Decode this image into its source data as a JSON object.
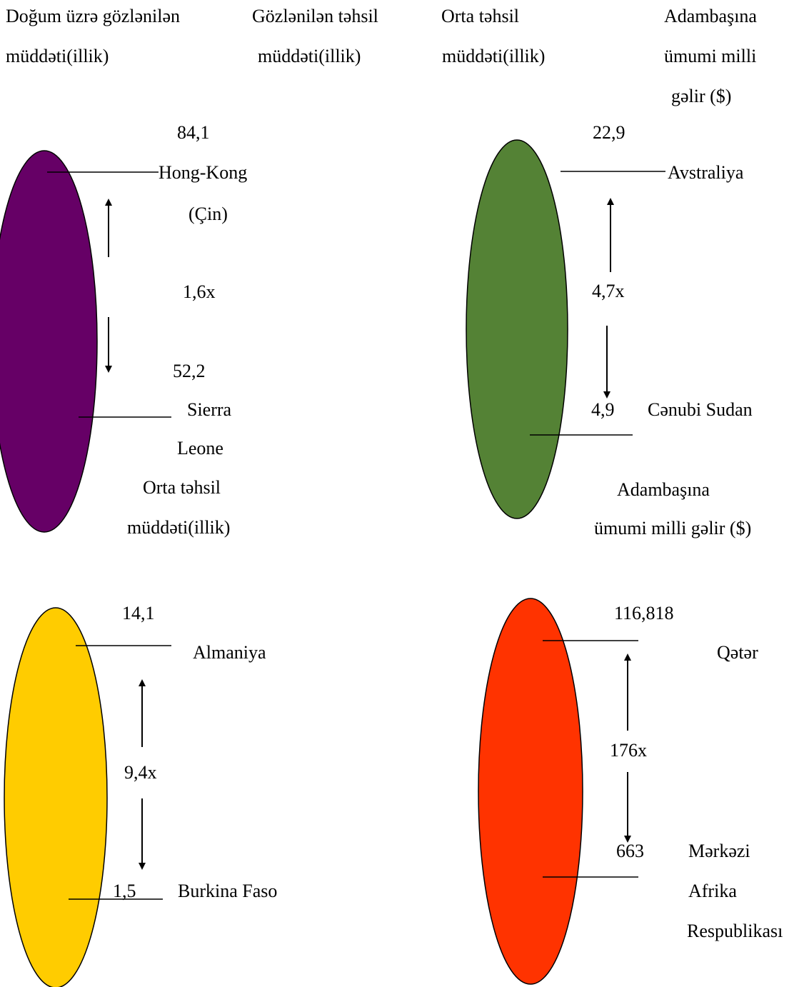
{
  "headers": {
    "h1": [
      "Doğum üzrə gözlənilən",
      "müddəti(illik)"
    ],
    "h2": [
      "Gözlənilən təhsil",
      "müddəti(illik)"
    ],
    "h3": [
      "Orta təhsil",
      "müddəti(illik)"
    ],
    "h4": [
      "Adambaşına",
      "ümumi milli",
      "gəlir ($)"
    ]
  },
  "panels": {
    "life": {
      "color": "#660066",
      "top_value": "84,1",
      "top_country": [
        "Hong-Kong",
        "(Çin)"
      ],
      "ratio": "1,6x",
      "bottom_value": "52,2",
      "bottom_country": [
        "Sierra",
        "Leone"
      ],
      "caption": [
        "Orta təhsil",
        "müddəti(illik)"
      ]
    },
    "education": {
      "color": "#548235",
      "top_value": "22,9",
      "top_country": "Avstraliya",
      "ratio": "4,7x",
      "bottom_value": "4,9",
      "bottom_country": "Cənubi Sudan",
      "caption": [
        "Adambaşına",
        "ümumi milli gəlir ($)"
      ]
    },
    "schooling": {
      "color": "#ffcc00",
      "top_value": "14,1",
      "top_country": "Almaniya",
      "ratio": "9,4x",
      "bottom_value": "1,5",
      "bottom_country": "Burkina Faso"
    },
    "income": {
      "color": "#ff3300",
      "top_value": "116,818",
      "top_country": "Qətər",
      "ratio": "176x",
      "bottom_value": "663",
      "bottom_country": [
        "Mərkəzi",
        "Afrika",
        "Respublikası"
      ]
    }
  }
}
